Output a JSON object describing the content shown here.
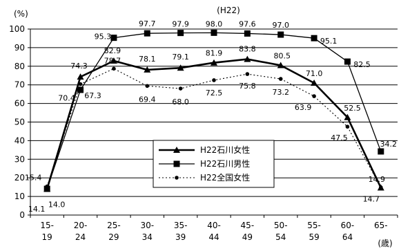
{
  "chart_data": {
    "type": "line",
    "title": "(H22)",
    "ylabel": "(%)",
    "xlabel": "",
    "x_unit": "(歳)",
    "ylim": [
      0,
      100
    ],
    "y_ticks": [
      0,
      10,
      20,
      30,
      40,
      50,
      60,
      70,
      80,
      90,
      100
    ],
    "grid": true,
    "legend_position": "lower-center",
    "categories": [
      [
        "15-",
        "19"
      ],
      [
        "20-",
        "24"
      ],
      [
        "25-",
        "29"
      ],
      [
        "30-",
        "34"
      ],
      [
        "35-",
        "39"
      ],
      [
        "40-",
        "44"
      ],
      [
        "45-",
        "49"
      ],
      [
        "50-",
        "54"
      ],
      [
        "55-",
        "59"
      ],
      [
        "60-",
        "64"
      ],
      [
        "65-",
        ""
      ]
    ],
    "series": [
      {
        "name": "H22石川女性",
        "marker": "triangle",
        "line": "solid-thick",
        "color": "#000000",
        "values": [
          14.0,
          74.3,
          82.9,
          78.1,
          79.1,
          81.9,
          83.8,
          80.5,
          71.0,
          52.5,
          14.7
        ],
        "labels": [
          "14.0",
          "74.3",
          "82.9",
          "78.1",
          "79.1",
          "81.9",
          "83.8",
          "80.5",
          "71.0",
          "52.5",
          "14.7"
        ]
      },
      {
        "name": "H22石川男性",
        "marker": "square",
        "line": "solid-thin",
        "color": "#000000",
        "values": [
          14.1,
          67.3,
          95.3,
          97.7,
          97.9,
          98.0,
          97.6,
          97.0,
          95.1,
          82.5,
          34.2
        ],
        "labels": [
          "14.1",
          "67.3",
          "95.3",
          "97.7",
          "97.9",
          "98.0",
          "97.6",
          "97.0",
          "95.1",
          "82.5",
          "34.2"
        ]
      },
      {
        "name": "H22全国女性",
        "marker": "circle",
        "line": "dotted",
        "color": "#000000",
        "values": [
          15.4,
          70.4,
          78.7,
          69.4,
          68.0,
          72.5,
          75.8,
          73.2,
          63.9,
          47.5,
          14.9
        ],
        "labels": [
          "15.4",
          "70.4",
          "78.7",
          "69.4",
          "68.0",
          "72.5",
          "75.8",
          "73.2",
          "63.9",
          "47.5",
          "14.9"
        ]
      }
    ]
  }
}
